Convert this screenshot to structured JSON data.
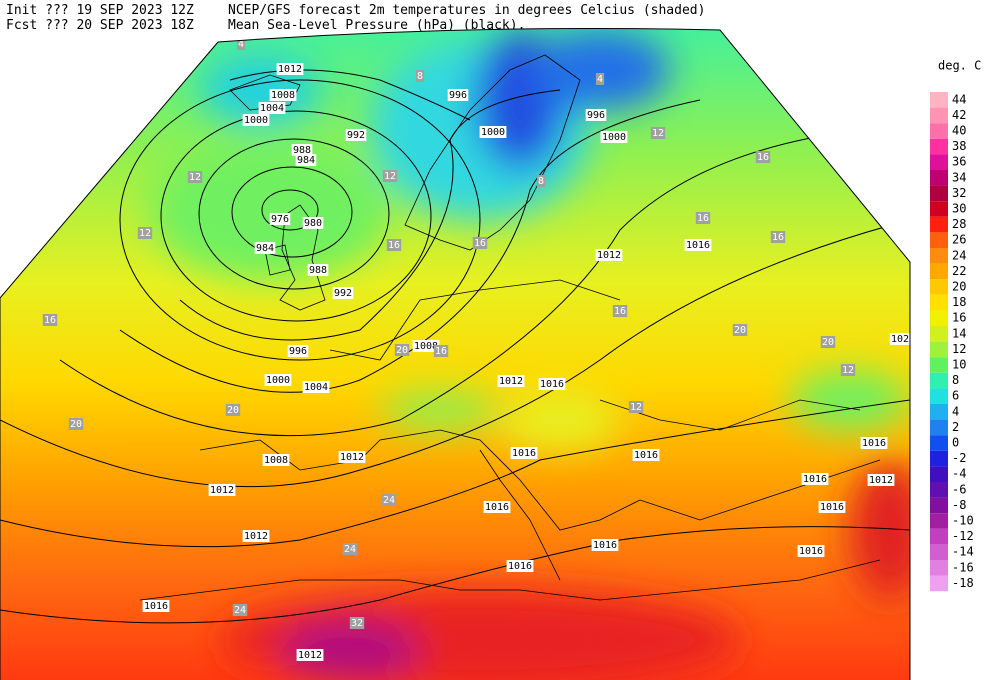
{
  "header": {
    "init": "Init  ??? 19 SEP 2023 12Z",
    "fcst": "Fcst ??? 20 SEP 2023 18Z",
    "title_line1": "NCEP/GFS forecast 2m temperatures in degrees Celcius (shaded)",
    "title_line2": "Mean Sea-Level Pressure (hPa) (black)."
  },
  "legend": {
    "title": "deg. C",
    "levels": [
      44,
      42,
      40,
      38,
      36,
      34,
      32,
      30,
      28,
      26,
      24,
      22,
      20,
      18,
      16,
      14,
      12,
      10,
      8,
      6,
      4,
      2,
      0,
      -2,
      -4,
      -6,
      -8,
      -10,
      -12,
      -14,
      -16,
      -18
    ],
    "colors": [
      "#ffb4c4",
      "#ff94b4",
      "#ff70aa",
      "#ff30a0",
      "#e0109a",
      "#c00070",
      "#b00040",
      "#d00020",
      "#ff2010",
      "#ff6010",
      "#ff8c10",
      "#ffa800",
      "#ffc800",
      "#ffe000",
      "#f0f000",
      "#d0f020",
      "#a0f040",
      "#60f060",
      "#30f0b0",
      "#20e0e0",
      "#20b0f0",
      "#2080f0",
      "#1050f0",
      "#2020e0",
      "#4010c0",
      "#6010b0",
      "#8010a0",
      "#a020a0",
      "#c040c0",
      "#d060d0",
      "#e080e0",
      "#f0a0f0"
    ]
  },
  "isobar_labels": [
    "1012",
    "1008",
    "1004",
    "1000",
    "996",
    "992",
    "988",
    "984",
    "976",
    "980",
    "984",
    "988",
    "992",
    "996",
    "1000",
    "1004",
    "1000",
    "996",
    "1000",
    "1008",
    "1012",
    "1016",
    "1012",
    "1016",
    "1008",
    "1012",
    "1012",
    "1012",
    "1016",
    "1016",
    "1016",
    "1016",
    "1016",
    "1012",
    "1016",
    "1016",
    "1016",
    "1016",
    "1016",
    "1012",
    "102"
  ],
  "temperature_labels": [
    "4",
    "8",
    "12",
    "12",
    "12",
    "16",
    "16",
    "16",
    "20",
    "20",
    "20",
    "16",
    "20",
    "20",
    "16",
    "12",
    "24",
    "24",
    "24",
    "32",
    "16",
    "16",
    "16",
    "12",
    "4",
    "8",
    "12"
  ]
}
